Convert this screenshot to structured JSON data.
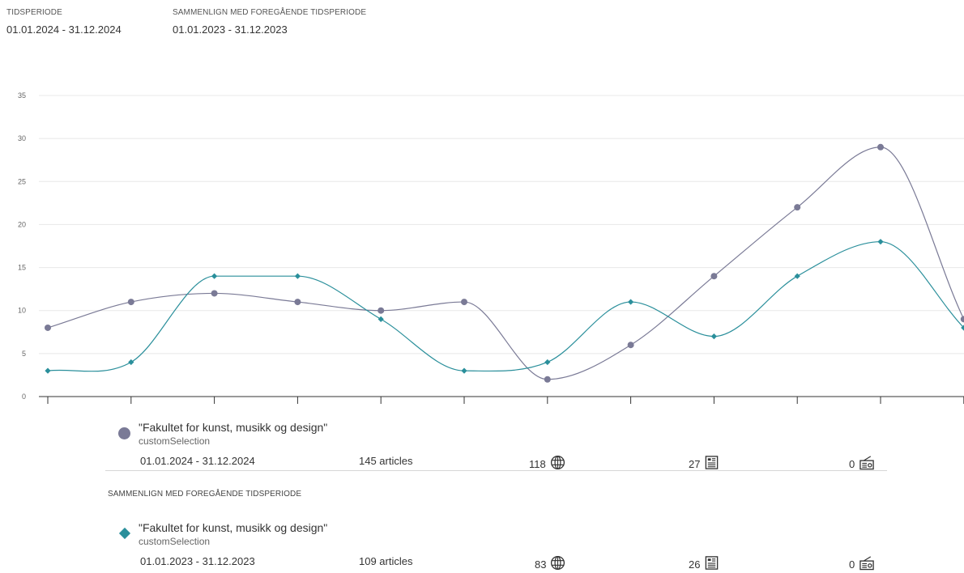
{
  "period": {
    "label": "TIDSPERIODE",
    "value": "01.01.2024 - 31.12.2024"
  },
  "compare_period": {
    "label": "SAMMENLIGN MED FOREGÅENDE TIDSPERIODE",
    "value": "01.01.2023 - 31.12.2023"
  },
  "compare_section_label": "SAMMENLIGN MED FOREGÅENDE TIDSPERIODE",
  "chart_data": {
    "type": "line",
    "title": "",
    "xlabel": "",
    "ylabel": "",
    "ylim": [
      0,
      35
    ],
    "yticks": [
      0,
      5,
      10,
      15,
      20,
      25,
      30,
      35
    ],
    "x": [
      1,
      2,
      3,
      4,
      5,
      6,
      7,
      8,
      9,
      10,
      11,
      12
    ],
    "grid": true,
    "series": [
      {
        "values": [
          8,
          11,
          12,
          11,
          10,
          11,
          2,
          6,
          14,
          22,
          29,
          9
        ],
        "color": "#7a7a96",
        "marker": "circle"
      },
      {
        "values": [
          3,
          4,
          14,
          14,
          9,
          3,
          4,
          11,
          7,
          14,
          18,
          8
        ],
        "color": "#2a8f9b",
        "marker": "diamond"
      }
    ]
  },
  "legend": [
    {
      "title": "\"Fakultet for kunst, musikk og design\"",
      "subtitle": "customSelection",
      "date_range": "01.01.2024 - 31.12.2024",
      "articles": "145 articles",
      "web_count": "118",
      "print_count": "27",
      "broadcast_count": "0",
      "color": "#7a7a96",
      "marker": "circle"
    },
    {
      "title": "\"Fakultet for kunst, musikk og design\"",
      "subtitle": "customSelection",
      "date_range": "01.01.2023 - 31.12.2023",
      "articles": "109 articles",
      "web_count": "83",
      "print_count": "26",
      "broadcast_count": "0",
      "color": "#2a8f9b",
      "marker": "diamond"
    }
  ],
  "icons": {
    "web": "globe-icon",
    "print": "newspaper-icon",
    "broadcast": "radio-icon"
  }
}
